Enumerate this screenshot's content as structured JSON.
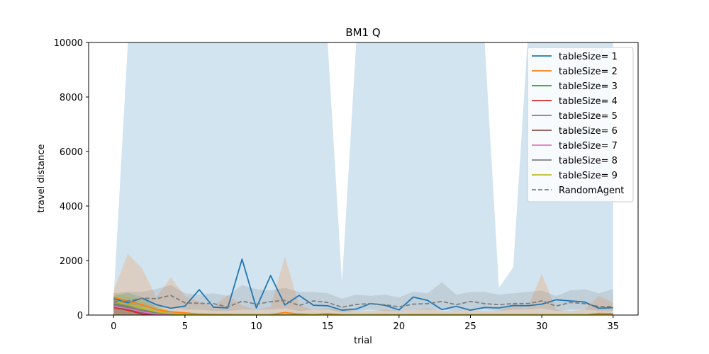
{
  "chart_data": {
    "type": "line",
    "title": "BM1  Q",
    "xlabel": "trial",
    "ylabel": "travel distance",
    "xlim": [
      -1.75,
      36.75
    ],
    "ylim": [
      0,
      10000
    ],
    "xticks": [
      0,
      5,
      10,
      15,
      20,
      25,
      30,
      35
    ],
    "yticks": [
      0,
      2000,
      4000,
      6000,
      8000,
      10000
    ],
    "grid": false,
    "legend_position": "top-right",
    "x": [
      0,
      1,
      2,
      3,
      4,
      5,
      6,
      7,
      8,
      9,
      10,
      11,
      12,
      13,
      14,
      15,
      16,
      17,
      18,
      19,
      20,
      21,
      22,
      23,
      24,
      25,
      26,
      27,
      28,
      29,
      30,
      31,
      32,
      33,
      34,
      35
    ],
    "series": [
      {
        "name": "tableSize= 1",
        "color": "#1f77b4",
        "dash": false,
        "values": [
          600,
          450,
          620,
          380,
          250,
          330,
          930,
          290,
          260,
          2050,
          260,
          1450,
          370,
          720,
          360,
          340,
          180,
          220,
          420,
          360,
          190,
          660,
          540,
          200,
          320,
          180,
          280,
          260,
          350,
          340,
          400,
          560,
          520,
          480,
          250,
          270
        ],
        "band_lower": [
          0,
          0,
          0,
          0,
          0,
          0,
          0,
          0,
          0,
          0,
          0,
          0,
          0,
          0,
          0,
          0,
          0,
          0,
          0,
          0,
          0,
          0,
          0,
          0,
          0,
          0,
          0,
          0,
          0,
          0,
          0,
          0,
          0,
          0,
          0,
          0
        ],
        "band_upper": [
          600,
          10000,
          10000,
          10000,
          10000,
          10000,
          10000,
          10000,
          10000,
          10000,
          10000,
          10000,
          10000,
          10000,
          10000,
          10000,
          1200,
          10000,
          10000,
          10000,
          10000,
          10000,
          10000,
          10000,
          10000,
          10000,
          10000,
          1000,
          1750,
          10000,
          10000,
          10000,
          10000,
          10000,
          10000,
          10000
        ]
      },
      {
        "name": "tableSize= 2",
        "color": "#ff7f0e",
        "dash": false,
        "values": [
          650,
          520,
          380,
          200,
          120,
          80,
          40,
          30,
          25,
          20,
          15,
          20,
          90,
          40,
          20,
          50,
          20,
          15,
          15,
          20,
          10,
          15,
          20,
          10,
          10,
          15,
          10,
          10,
          10,
          10,
          15,
          10,
          10,
          10,
          60,
          50
        ],
        "band_lower": [
          0,
          0,
          0,
          0,
          0,
          0,
          0,
          0,
          0,
          0,
          0,
          0,
          0,
          0,
          0,
          0,
          0,
          0,
          0,
          0,
          0,
          0,
          0,
          0,
          0,
          0,
          0,
          0,
          0,
          0,
          0,
          0,
          0,
          0,
          0,
          0
        ],
        "band_upper": [
          900,
          2250,
          1700,
          650,
          1380,
          700,
          500,
          300,
          750,
          350,
          200,
          300,
          2150,
          350,
          200,
          250,
          200,
          150,
          150,
          200,
          150,
          200,
          250,
          150,
          150,
          200,
          150,
          150,
          400,
          250,
          1520,
          200,
          150,
          200,
          700,
          450
        ]
      },
      {
        "name": "tableSize= 3",
        "color": "#2ca02c",
        "dash": false,
        "values": [
          400,
          300,
          150,
          80,
          40,
          20,
          15,
          10,
          10,
          10,
          10,
          10,
          10,
          10,
          10,
          10,
          10,
          10,
          10,
          10,
          10,
          10,
          10,
          10,
          10,
          10,
          10,
          10,
          10,
          10,
          10,
          10,
          10,
          10,
          10,
          10
        ],
        "band_lower": [
          0,
          0,
          0,
          0,
          0,
          0,
          0,
          0,
          0,
          0,
          0,
          0,
          0,
          0,
          0,
          0,
          0,
          0,
          0,
          0,
          0,
          0,
          0,
          0,
          0,
          0,
          0,
          0,
          0,
          0,
          0,
          0,
          0,
          0,
          0,
          0
        ],
        "band_upper": [
          700,
          820,
          650,
          300,
          150,
          80,
          50,
          40,
          40,
          40,
          40,
          40,
          40,
          40,
          40,
          40,
          40,
          40,
          40,
          40,
          40,
          40,
          40,
          40,
          40,
          40,
          40,
          40,
          40,
          40,
          40,
          40,
          40,
          40,
          40,
          40
        ]
      },
      {
        "name": "tableSize= 4",
        "color": "#d62728",
        "dash": false,
        "values": [
          280,
          180,
          40,
          15,
          10,
          10,
          10,
          10,
          10,
          10,
          10,
          10,
          10,
          10,
          10,
          10,
          10,
          10,
          10,
          10,
          10,
          10,
          10,
          10,
          10,
          10,
          10,
          10,
          10,
          10,
          10,
          10,
          10,
          10,
          10,
          10
        ],
        "band_lower": [
          0,
          0,
          0,
          0,
          0,
          0,
          0,
          0,
          0,
          0,
          0,
          0,
          0,
          0,
          0,
          0,
          0,
          0,
          0,
          0,
          0,
          0,
          0,
          0,
          0,
          0,
          0,
          0,
          0,
          0,
          0,
          0,
          0,
          0,
          0,
          0
        ],
        "band_upper": [
          500,
          400,
          150,
          50,
          30,
          30,
          30,
          30,
          30,
          30,
          30,
          30,
          30,
          30,
          30,
          30,
          30,
          30,
          30,
          30,
          30,
          30,
          30,
          30,
          30,
          30,
          30,
          30,
          30,
          30,
          30,
          30,
          30,
          30,
          30,
          30
        ]
      },
      {
        "name": "tableSize= 5",
        "color": "#9467bd",
        "dash": false,
        "values": [
          350,
          250,
          80,
          20,
          10,
          10,
          10,
          10,
          10,
          10,
          10,
          10,
          10,
          10,
          10,
          10,
          10,
          10,
          10,
          10,
          10,
          10,
          10,
          10,
          10,
          10,
          10,
          10,
          10,
          10,
          10,
          10,
          10,
          10,
          10,
          10
        ],
        "band_lower": [
          0,
          0,
          0,
          0,
          0,
          0,
          0,
          0,
          0,
          0,
          0,
          0,
          0,
          0,
          0,
          0,
          0,
          0,
          0,
          0,
          0,
          0,
          0,
          0,
          0,
          0,
          0,
          0,
          0,
          0,
          0,
          0,
          0,
          0,
          0,
          0
        ],
        "band_upper": [
          600,
          500,
          250,
          80,
          40,
          30,
          30,
          30,
          30,
          30,
          30,
          30,
          30,
          30,
          30,
          30,
          30,
          30,
          30,
          30,
          30,
          30,
          30,
          30,
          30,
          30,
          30,
          30,
          30,
          30,
          30,
          30,
          30,
          30,
          30,
          30
        ]
      },
      {
        "name": "tableSize= 6",
        "color": "#8c564b",
        "dash": false,
        "values": [
          300,
          220,
          100,
          30,
          15,
          10,
          10,
          10,
          10,
          10,
          10,
          10,
          10,
          10,
          10,
          10,
          10,
          10,
          10,
          10,
          10,
          10,
          10,
          10,
          10,
          10,
          10,
          10,
          10,
          10,
          10,
          10,
          10,
          10,
          10,
          10
        ],
        "band_lower": [
          0,
          0,
          0,
          0,
          0,
          0,
          0,
          0,
          0,
          0,
          0,
          0,
          0,
          0,
          0,
          0,
          0,
          0,
          0,
          0,
          0,
          0,
          0,
          0,
          0,
          0,
          0,
          0,
          0,
          0,
          0,
          0,
          0,
          0,
          0,
          0
        ],
        "band_upper": [
          550,
          450,
          250,
          100,
          40,
          30,
          30,
          30,
          30,
          30,
          30,
          30,
          30,
          30,
          30,
          30,
          30,
          30,
          30,
          30,
          30,
          30,
          30,
          30,
          30,
          30,
          30,
          30,
          30,
          30,
          30,
          30,
          30,
          30,
          30,
          30
        ]
      },
      {
        "name": "tableSize= 7",
        "color": "#e377c2",
        "dash": false,
        "values": [
          320,
          240,
          120,
          40,
          15,
          10,
          10,
          10,
          10,
          10,
          10,
          10,
          10,
          10,
          10,
          10,
          10,
          10,
          10,
          10,
          10,
          10,
          10,
          10,
          10,
          10,
          10,
          10,
          10,
          10,
          10,
          10,
          10,
          10,
          10,
          10
        ],
        "band_lower": [
          0,
          0,
          0,
          0,
          0,
          0,
          0,
          0,
          0,
          0,
          0,
          0,
          0,
          0,
          0,
          0,
          0,
          0,
          0,
          0,
          0,
          0,
          0,
          0,
          0,
          0,
          0,
          0,
          0,
          0,
          0,
          0,
          0,
          0,
          0,
          0
        ],
        "band_upper": [
          550,
          450,
          250,
          100,
          40,
          30,
          30,
          30,
          30,
          30,
          30,
          30,
          30,
          30,
          30,
          30,
          30,
          30,
          30,
          30,
          30,
          30,
          30,
          30,
          30,
          30,
          30,
          30,
          30,
          30,
          30,
          30,
          30,
          30,
          30,
          30
        ]
      },
      {
        "name": "tableSize= 8",
        "color": "#7f7f7f",
        "dash": false,
        "values": [
          380,
          280,
          180,
          90,
          40,
          20,
          15,
          10,
          10,
          10,
          10,
          10,
          10,
          10,
          10,
          10,
          10,
          10,
          10,
          10,
          10,
          10,
          10,
          10,
          10,
          10,
          10,
          10,
          10,
          10,
          10,
          10,
          10,
          10,
          10,
          10
        ],
        "band_lower": [
          0,
          0,
          0,
          0,
          0,
          0,
          0,
          0,
          0,
          0,
          0,
          0,
          0,
          0,
          0,
          0,
          0,
          0,
          0,
          0,
          0,
          0,
          0,
          0,
          0,
          0,
          0,
          0,
          0,
          0,
          0,
          0,
          0,
          0,
          0,
          0
        ],
        "band_upper": [
          650,
          550,
          400,
          250,
          120,
          60,
          40,
          30,
          30,
          30,
          30,
          30,
          30,
          30,
          30,
          30,
          30,
          30,
          30,
          30,
          30,
          30,
          30,
          30,
          30,
          30,
          30,
          30,
          30,
          30,
          30,
          30,
          30,
          30,
          30,
          30
        ]
      },
      {
        "name": "tableSize= 9",
        "color": "#bcbd22",
        "dash": false,
        "values": [
          500,
          400,
          250,
          120,
          50,
          25,
          15,
          10,
          10,
          10,
          10,
          10,
          10,
          10,
          10,
          10,
          10,
          10,
          10,
          10,
          10,
          10,
          10,
          10,
          10,
          10,
          10,
          10,
          10,
          10,
          10,
          10,
          10,
          10,
          10,
          10
        ],
        "band_lower": [
          0,
          0,
          0,
          0,
          0,
          0,
          0,
          0,
          0,
          0,
          0,
          0,
          0,
          0,
          0,
          0,
          0,
          0,
          0,
          0,
          0,
          0,
          0,
          0,
          0,
          0,
          0,
          0,
          0,
          0,
          0,
          0,
          0,
          0,
          0,
          0
        ],
        "band_upper": [
          800,
          700,
          500,
          300,
          150,
          70,
          40,
          30,
          30,
          30,
          30,
          30,
          30,
          30,
          30,
          30,
          30,
          30,
          30,
          30,
          30,
          30,
          30,
          30,
          30,
          30,
          30,
          30,
          30,
          30,
          30,
          30,
          30,
          30,
          30,
          30
        ]
      },
      {
        "name": "RandomAgent",
        "color": "#7f7f7f",
        "dash": true,
        "values": [
          480,
          520,
          620,
          600,
          720,
          450,
          430,
          420,
          300,
          510,
          400,
          490,
          540,
          350,
          520,
          460,
          290,
          390,
          420,
          380,
          300,
          400,
          420,
          500,
          380,
          500,
          420,
          380,
          420,
          420,
          520,
          330,
          460,
          420,
          310,
          310
        ],
        "band_lower": [
          200,
          200,
          300,
          250,
          300,
          200,
          200,
          150,
          150,
          200,
          200,
          200,
          250,
          150,
          200,
          200,
          100,
          150,
          200,
          150,
          150,
          200,
          200,
          200,
          150,
          200,
          200,
          150,
          200,
          200,
          250,
          150,
          200,
          200,
          150,
          150
        ],
        "band_upper": [
          800,
          850,
          850,
          950,
          1100,
          800,
          750,
          800,
          700,
          1100,
          950,
          900,
          1000,
          850,
          850,
          800,
          600,
          750,
          700,
          750,
          650,
          850,
          800,
          1200,
          750,
          850,
          850,
          750,
          800,
          850,
          900,
          700,
          900,
          950,
          800,
          950
        ]
      }
    ]
  }
}
